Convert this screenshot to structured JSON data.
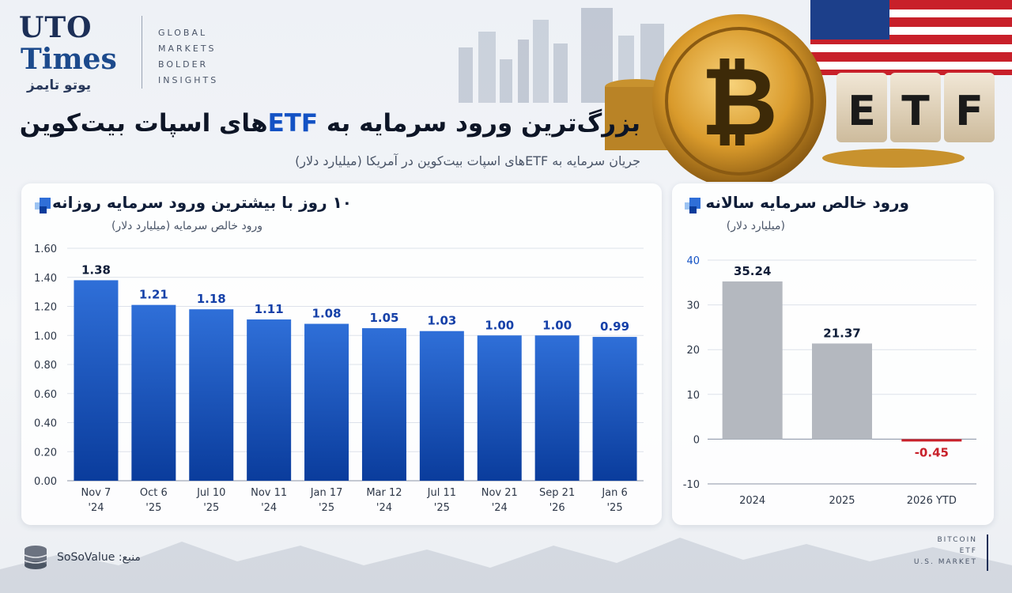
{
  "brand": {
    "name_line1": "UTO",
    "name_line2": "Times",
    "name_fa": "یوتو تایمز",
    "tagline": [
      "GLOBAL",
      "MARKETS",
      "BOLDER",
      "INSIGHTS"
    ]
  },
  "hero": {
    "etf_letters": [
      "E",
      "T",
      "F"
    ]
  },
  "header": {
    "title_part1": "بزرگ‌ترین ورود سرمایه به ",
    "title_etf": "ETF",
    "title_part2": "های اسپات بیت‌کوین",
    "subtitle": "جریان سرمایه به ETFهای اسپات بیت‌کوین در آمریکا (میلیارد دلار)"
  },
  "colors": {
    "bar_blue_top": "#2f6fd8",
    "bar_blue_bottom": "#0a3c9c",
    "bar_gray": "#b4b8bf",
    "negative_red": "#c8202a",
    "value_label_blue": "#1540a8",
    "accent_blue": "#1352c4"
  },
  "footer": {
    "source_label": "منبع:",
    "source_name": "SoSoValue",
    "stack": [
      "BITCOIN",
      "ETF",
      "U.S. MARKET"
    ]
  },
  "chart_data": [
    {
      "type": "bar",
      "title": "۱۰ روز با بیشترین ورود سرمایه روزانه",
      "subtitle": "ورود خالص سرمایه (میلیارد دلار)",
      "categories": [
        [
          "Nov 7",
          "'24"
        ],
        [
          "Oct 6",
          "'25"
        ],
        [
          "Jul 10",
          "'25"
        ],
        [
          "Nov 11",
          "'24"
        ],
        [
          "Jan 17",
          "'25"
        ],
        [
          "Mar 12",
          "'24"
        ],
        [
          "Jul 11",
          "'25"
        ],
        [
          "Nov 21",
          "'24"
        ],
        [
          "Sep 21",
          "'26"
        ],
        [
          "Jan 6",
          "'25"
        ]
      ],
      "values": [
        1.38,
        1.21,
        1.18,
        1.11,
        1.08,
        1.05,
        1.03,
        1.0,
        1.0,
        0.99
      ],
      "value_labels": [
        "1.38",
        "1.21",
        "1.18",
        "1.11",
        "1.08",
        "1.05",
        "1.03",
        "1.00",
        "1.00",
        "0.99"
      ],
      "ylim": [
        0,
        1.6
      ],
      "yticks": [
        "0.00",
        "0.20",
        "0.40",
        "0.60",
        "0.80",
        "1.00",
        "1.20",
        "1.40",
        "1.60"
      ],
      "grid": true
    },
    {
      "type": "bar",
      "title": "ورود خالص سرمایه سالانه",
      "subtitle": "(میلیارد دلار)",
      "categories": [
        "2024",
        "2025",
        "2026 YTD"
      ],
      "values": [
        35.24,
        21.37,
        -0.45
      ],
      "value_labels": [
        "35.24",
        "21.37",
        "-0.45"
      ],
      "ylim": [
        -10,
        40
      ],
      "yticks": [
        "-10",
        "0",
        "10",
        "20",
        "30",
        "40"
      ],
      "grid": true
    }
  ]
}
